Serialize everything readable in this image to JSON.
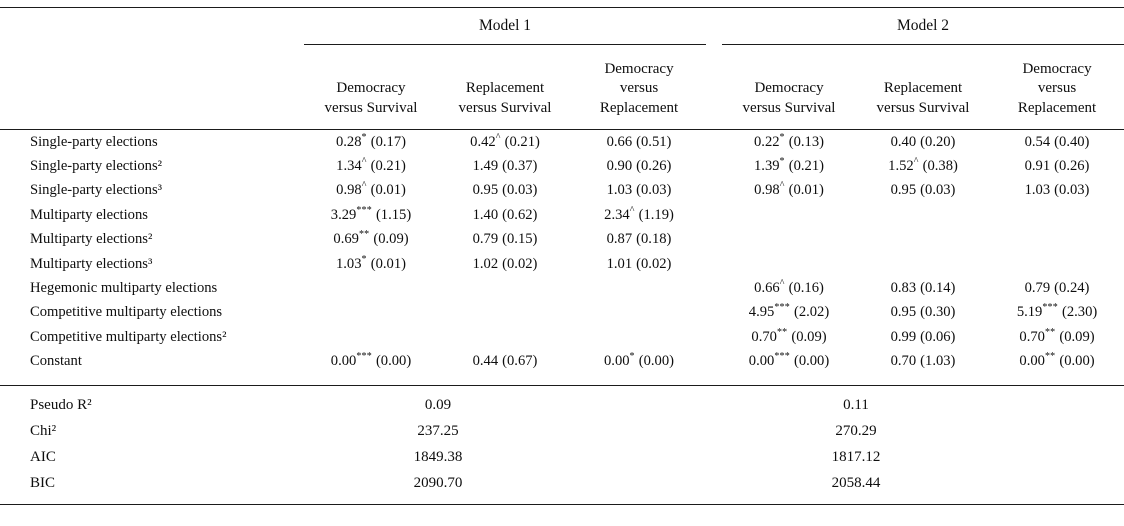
{
  "page": {
    "background": "#ffffff",
    "text_color": "#0e0e0e",
    "rule_color": "#1b1b1b"
  },
  "header": {
    "models": [
      {
        "label": "Model 1"
      },
      {
        "label": "Model 2"
      }
    ],
    "columns": [
      "Democracy\nversus Survival",
      "Replacement\nversus Survival",
      "Democracy\nversus\nReplacement",
      "Democracy\nversus Survival",
      "Replacement\nversus Survival",
      "Democracy\nversus\nReplacement"
    ]
  },
  "rows": [
    {
      "label": "Single-party elections",
      "cells": [
        {
          "est": "0.28",
          "sig": "*",
          "se": "(0.17)"
        },
        {
          "est": "0.42",
          "sig": "^",
          "se": "(0.21)"
        },
        {
          "est": "0.66",
          "sig": "",
          "se": "(0.51)"
        },
        {
          "est": "0.22",
          "sig": "*",
          "se": "(0.13)"
        },
        {
          "est": "0.40",
          "sig": "",
          "se": "(0.20)"
        },
        {
          "est": "0.54",
          "sig": "",
          "se": "(0.40)"
        }
      ]
    },
    {
      "label": "Single-party elections²",
      "cells": [
        {
          "est": "1.34",
          "sig": "^",
          "se": "(0.21)"
        },
        {
          "est": "1.49",
          "sig": "",
          "se": "(0.37)"
        },
        {
          "est": "0.90",
          "sig": "",
          "se": "(0.26)"
        },
        {
          "est": "1.39",
          "sig": "*",
          "se": "(0.21)"
        },
        {
          "est": "1.52",
          "sig": "^",
          "se": "(0.38)"
        },
        {
          "est": "0.91",
          "sig": "",
          "se": "(0.26)"
        }
      ]
    },
    {
      "label": "Single-party elections³",
      "cells": [
        {
          "est": "0.98",
          "sig": "^",
          "se": "(0.01)"
        },
        {
          "est": "0.95",
          "sig": "",
          "se": "(0.03)"
        },
        {
          "est": "1.03",
          "sig": "",
          "se": "(0.03)"
        },
        {
          "est": "0.98",
          "sig": "^",
          "se": "(0.01)"
        },
        {
          "est": "0.95",
          "sig": "",
          "se": "(0.03)"
        },
        {
          "est": "1.03",
          "sig": "",
          "se": "(0.03)"
        }
      ]
    },
    {
      "label": "Multiparty elections",
      "cells": [
        {
          "est": "3.29",
          "sig": "***",
          "se": "(1.15)"
        },
        {
          "est": "1.40",
          "sig": "",
          "se": "(0.62)"
        },
        {
          "est": "2.34",
          "sig": "^",
          "se": "(1.19)"
        },
        {
          "est": "",
          "sig": "",
          "se": ""
        },
        {
          "est": "",
          "sig": "",
          "se": ""
        },
        {
          "est": "",
          "sig": "",
          "se": ""
        }
      ]
    },
    {
      "label": "Multiparty elections²",
      "cells": [
        {
          "est": "0.69",
          "sig": "**",
          "se": "(0.09)"
        },
        {
          "est": "0.79",
          "sig": "",
          "se": "(0.15)"
        },
        {
          "est": "0.87",
          "sig": "",
          "se": "(0.18)"
        },
        {
          "est": "",
          "sig": "",
          "se": ""
        },
        {
          "est": "",
          "sig": "",
          "se": ""
        },
        {
          "est": "",
          "sig": "",
          "se": ""
        }
      ]
    },
    {
      "label": "Multiparty elections³",
      "cells": [
        {
          "est": "1.03",
          "sig": "*",
          "se": "(0.01)"
        },
        {
          "est": "1.02",
          "sig": "",
          "se": "(0.02)"
        },
        {
          "est": "1.01",
          "sig": "",
          "se": "(0.02)"
        },
        {
          "est": "",
          "sig": "",
          "se": ""
        },
        {
          "est": "",
          "sig": "",
          "se": ""
        },
        {
          "est": "",
          "sig": "",
          "se": ""
        }
      ]
    },
    {
      "label": "Hegemonic multiparty elections",
      "cells": [
        {
          "est": "",
          "sig": "",
          "se": ""
        },
        {
          "est": "",
          "sig": "",
          "se": ""
        },
        {
          "est": "",
          "sig": "",
          "se": ""
        },
        {
          "est": "0.66",
          "sig": "^",
          "se": "(0.16)"
        },
        {
          "est": "0.83",
          "sig": "",
          "se": "(0.14)"
        },
        {
          "est": "0.79",
          "sig": "",
          "se": "(0.24)"
        }
      ]
    },
    {
      "label": "Competitive multiparty elections",
      "cells": [
        {
          "est": "",
          "sig": "",
          "se": ""
        },
        {
          "est": "",
          "sig": "",
          "se": ""
        },
        {
          "est": "",
          "sig": "",
          "se": ""
        },
        {
          "est": "4.95",
          "sig": "***",
          "se": "(2.02)"
        },
        {
          "est": "0.95",
          "sig": "",
          "se": "(0.30)"
        },
        {
          "est": "5.19",
          "sig": "***",
          "se": "(2.30)"
        }
      ]
    },
    {
      "label": "Competitive multiparty elections²",
      "cells": [
        {
          "est": "",
          "sig": "",
          "se": ""
        },
        {
          "est": "",
          "sig": "",
          "se": ""
        },
        {
          "est": "",
          "sig": "",
          "se": ""
        },
        {
          "est": "0.70",
          "sig": "**",
          "se": "(0.09)"
        },
        {
          "est": "0.99",
          "sig": "",
          "se": "(0.06)"
        },
        {
          "est": "0.70",
          "sig": "**",
          "se": "(0.09)"
        }
      ]
    },
    {
      "label": "Constant",
      "cells": [
        {
          "est": "0.00",
          "sig": "***",
          "se": "(0.00)"
        },
        {
          "est": "0.44",
          "sig": "",
          "se": "(0.67)"
        },
        {
          "est": "0.00",
          "sig": "*",
          "se": "(0.00)"
        },
        {
          "est": "0.00",
          "sig": "***",
          "se": "(0.00)"
        },
        {
          "est": "0.70",
          "sig": "",
          "se": "(1.03)"
        },
        {
          "est": "0.00",
          "sig": "**",
          "se": "(0.00)"
        }
      ]
    }
  ],
  "fit": [
    {
      "label": "Pseudo R²",
      "model1": "0.09",
      "model2": "0.11"
    },
    {
      "label": "Chi²",
      "model1": "237.25",
      "model2": "270.29"
    },
    {
      "label": "AIC",
      "model1": "1849.38",
      "model2": "1817.12"
    },
    {
      "label": "BIC",
      "model1": "2090.70",
      "model2": "2058.44"
    }
  ]
}
